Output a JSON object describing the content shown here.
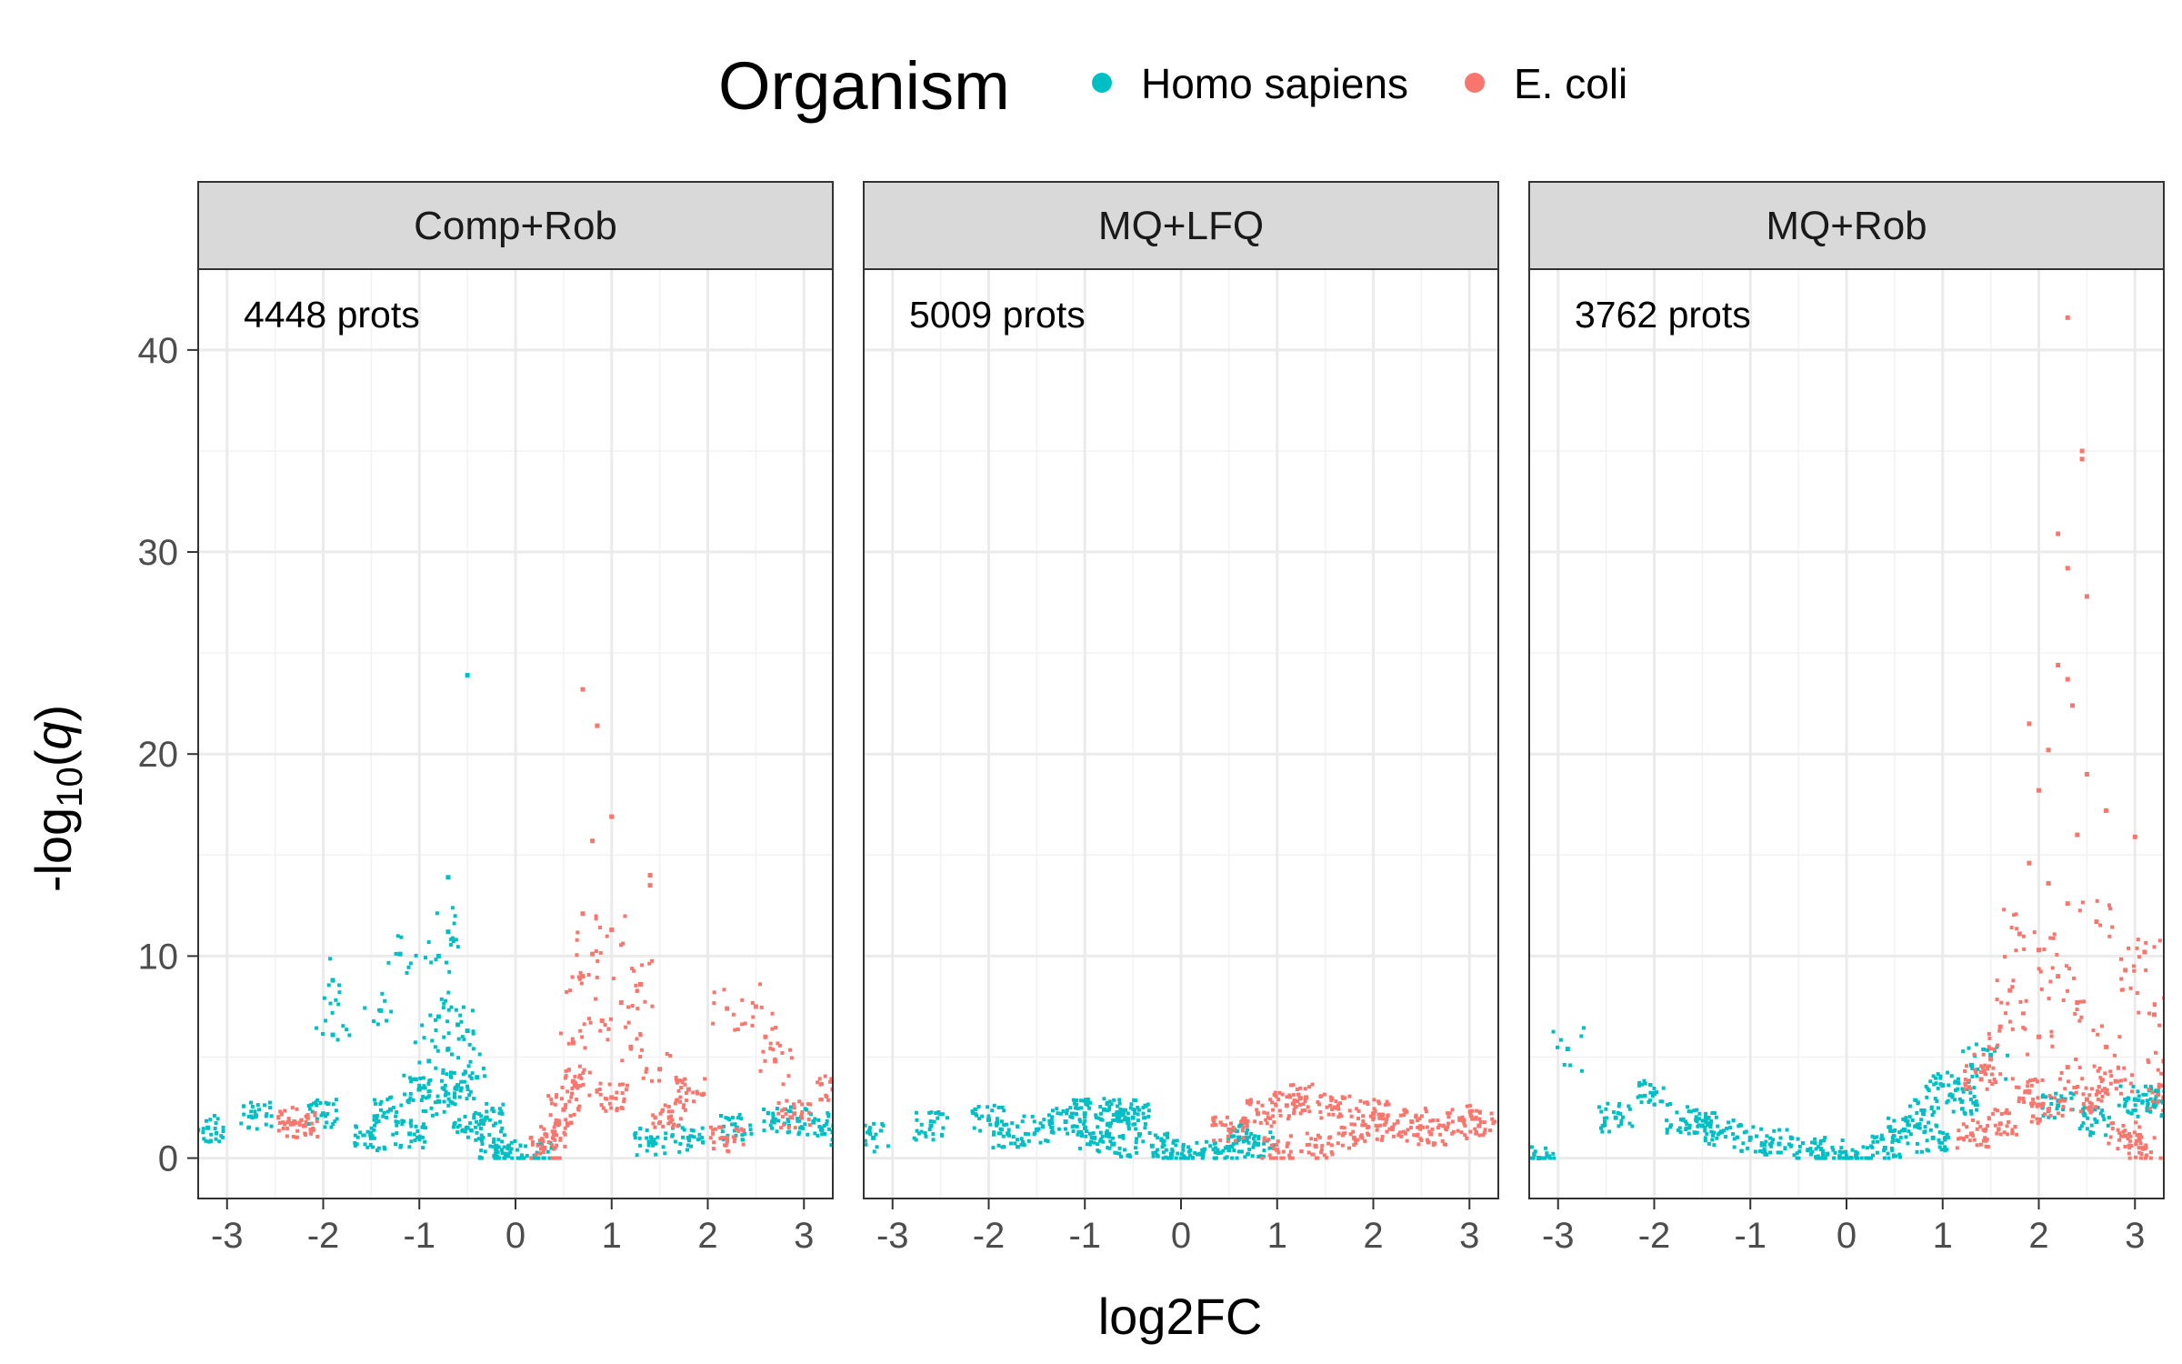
{
  "legend": {
    "title": "Organism",
    "items": [
      {
        "label": "Homo sapiens",
        "color": "#00BFC4"
      },
      {
        "label": "E. coli",
        "color": "#F8766D"
      }
    ]
  },
  "chart_data": {
    "type": "scatter",
    "xlabel": "log2FC",
    "ylabel": {
      "prefix": "-log",
      "sub": "10",
      "var": "q"
    },
    "xlim": [
      -3.3,
      3.3
    ],
    "ylim": [
      -2.0,
      44.0
    ],
    "x_ticks": [
      -3,
      -2,
      -1,
      0,
      1,
      2,
      3
    ],
    "x_tick_labels": [
      "-3",
      "-2",
      "-1",
      "0",
      "1",
      "2",
      "3"
    ],
    "y_ticks": [
      0,
      10,
      20,
      30,
      40
    ],
    "y_tick_labels": [
      "0",
      "10",
      "20",
      "30",
      "40"
    ],
    "grid": true,
    "legend_position": "top",
    "panels": [
      {
        "strip": "Comp+Rob",
        "annotation": "4448 prots",
        "series": [
          {
            "name": "Homo sapiens",
            "color": "#00BFC4",
            "values": [
              [
                -0.5,
                23.9
              ],
              [
                -0.7,
                13.9
              ],
              [
                -0.7,
                11.2
              ],
              [
                -0.8,
                10.0
              ],
              [
                -1.2,
                10.1
              ],
              [
                -1.9,
                8.8
              ],
              [
                -1.4,
                7.3
              ],
              [
                -1.9,
                6.1
              ],
              [
                -0.6,
                6.6
              ],
              [
                -0.8,
                7.0
              ],
              [
                -0.5,
                6.3
              ],
              [
                -0.7,
                5.4
              ],
              [
                -0.9,
                4.8
              ],
              [
                -0.4,
                4.0
              ],
              [
                -0.6,
                3.6
              ],
              [
                -1.0,
                3.4
              ],
              [
                -0.8,
                2.8
              ],
              [
                -1.3,
                2.4
              ],
              [
                -2.7,
                2.1
              ],
              [
                -3.2,
                1.5
              ],
              [
                -2.0,
                2.2
              ],
              [
                -0.3,
                2.0
              ],
              [
                -0.5,
                1.5
              ],
              [
                -1.1,
                1.2
              ],
              [
                -1.5,
                1.0
              ],
              [
                -0.2,
                0.6
              ],
              [
                -0.1,
                0.2
              ],
              [
                0.2,
                0.1
              ],
              [
                1.4,
                0.8
              ],
              [
                1.8,
                1.0
              ],
              [
                2.3,
                1.5
              ],
              [
                2.7,
                1.9
              ],
              [
                3.1,
                1.8
              ],
              [
                3.3,
                1.3
              ]
            ]
          },
          {
            "name": "E. coli",
            "color": "#F8766D",
            "values": [
              [
                0.7,
                23.2
              ],
              [
                0.85,
                21.4
              ],
              [
                1.0,
                16.9
              ],
              [
                0.8,
                15.7
              ],
              [
                1.4,
                14.0
              ],
              [
                1.4,
                13.5
              ],
              [
                0.7,
                12.1
              ],
              [
                1.0,
                11.3
              ],
              [
                0.8,
                10.1
              ],
              [
                0.7,
                9.0
              ],
              [
                1.3,
                8.6
              ],
              [
                1.1,
                7.7
              ],
              [
                0.9,
                6.8
              ],
              [
                2.5,
                7.5
              ],
              [
                2.2,
                7.4
              ],
              [
                2.6,
                6.0
              ],
              [
                0.6,
                5.7
              ],
              [
                1.2,
                5.5
              ],
              [
                2.7,
                4.8
              ],
              [
                1.5,
                4.4
              ],
              [
                0.6,
                3.8
              ],
              [
                1.8,
                3.4
              ],
              [
                3.3,
                3.4
              ],
              [
                1.0,
                3.0
              ],
              [
                2.9,
                2.2
              ],
              [
                0.5,
                2.4
              ],
              [
                1.6,
                2.0
              ],
              [
                0.4,
                1.2
              ],
              [
                2.2,
                1.0
              ],
              [
                -2.3,
                1.8
              ],
              [
                -2.2,
                1.6
              ],
              [
                0.3,
                0.5
              ]
            ]
          }
        ]
      },
      {
        "strip": "MQ+LFQ",
        "annotation": "5009 prots",
        "series": [
          {
            "name": "Homo sapiens",
            "color": "#00BFC4",
            "values": [
              [
                -3.2,
                1.0
              ],
              [
                -2.6,
                1.6
              ],
              [
                -2.0,
                1.9
              ],
              [
                -1.8,
                1.2
              ],
              [
                -1.5,
                1.4
              ],
              [
                -1.2,
                1.8
              ],
              [
                -1.0,
                2.2
              ],
              [
                -0.8,
                2.4
              ],
              [
                -0.6,
                2.3
              ],
              [
                -0.5,
                2.0
              ],
              [
                -0.9,
                1.0
              ],
              [
                -0.7,
                0.7
              ],
              [
                -0.3,
                0.6
              ],
              [
                -0.1,
                0.2
              ],
              [
                0.2,
                0.2
              ],
              [
                0.5,
                0.4
              ],
              [
                0.8,
                0.7
              ],
              [
                0.6,
                1.0
              ]
            ]
          },
          {
            "name": "E. coli",
            "color": "#F8766D",
            "values": [
              [
                0.5,
                1.4
              ],
              [
                0.8,
                2.2
              ],
              [
                1.1,
                2.6
              ],
              [
                1.3,
                3.0
              ],
              [
                1.6,
                2.5
              ],
              [
                2.0,
                2.2
              ],
              [
                2.4,
                1.8
              ],
              [
                2.6,
                1.2
              ],
              [
                2.9,
                1.9
              ],
              [
                3.1,
                1.6
              ],
              [
                1.0,
                0.4
              ],
              [
                1.4,
                0.6
              ],
              [
                1.8,
                1.0
              ],
              [
                2.2,
                1.5
              ]
            ]
          }
        ]
      },
      {
        "strip": "MQ+Rob",
        "annotation": "3762 prots",
        "series": [
          {
            "name": "Homo sapiens",
            "color": "#00BFC4",
            "values": [
              [
                -2.9,
                5.4
              ],
              [
                -3.2,
                0.0
              ],
              [
                -2.0,
                3.2
              ],
              [
                -2.4,
                2.0
              ],
              [
                -1.7,
                1.9
              ],
              [
                -1.5,
                1.6
              ],
              [
                -1.3,
                1.3
              ],
              [
                -1.0,
                1.0
              ],
              [
                -0.7,
                0.7
              ],
              [
                -0.4,
                0.4
              ],
              [
                -0.2,
                0.2
              ],
              [
                0.1,
                0.1
              ],
              [
                0.4,
                0.5
              ],
              [
                0.6,
                1.4
              ],
              [
                0.8,
                2.2
              ],
              [
                1.0,
                3.6
              ],
              [
                1.3,
                4.6
              ],
              [
                1.5,
                5.1
              ],
              [
                1.2,
                2.8
              ],
              [
                0.9,
                1.0
              ],
              [
                2.2,
                2.6
              ],
              [
                2.6,
                1.8
              ],
              [
                3.0,
                2.9
              ],
              [
                3.2,
                2.7
              ]
            ]
          },
          {
            "name": "E. coli",
            "color": "#F8766D",
            "values": [
              [
                2.3,
                41.6
              ],
              [
                2.45,
                35.0
              ],
              [
                2.45,
                34.6
              ],
              [
                2.2,
                30.9
              ],
              [
                2.3,
                29.2
              ],
              [
                2.5,
                27.8
              ],
              [
                2.2,
                24.4
              ],
              [
                2.3,
                23.7
              ],
              [
                2.35,
                22.4
              ],
              [
                1.9,
                21.5
              ],
              [
                2.1,
                20.2
              ],
              [
                2.5,
                19.0
              ],
              [
                2.0,
                18.2
              ],
              [
                2.7,
                17.2
              ],
              [
                2.4,
                16.0
              ],
              [
                3.0,
                15.9
              ],
              [
                1.9,
                14.6
              ],
              [
                2.1,
                13.6
              ],
              [
                2.3,
                12.6
              ],
              [
                2.6,
                11.7
              ],
              [
                1.8,
                11.1
              ],
              [
                2.0,
                10.3
              ],
              [
                3.1,
                10.2
              ],
              [
                2.9,
                9.3
              ],
              [
                2.2,
                9.0
              ],
              [
                1.7,
                8.3
              ],
              [
                2.4,
                7.7
              ],
              [
                3.2,
                7.1
              ],
              [
                1.6,
                6.5
              ],
              [
                2.0,
                6.0
              ],
              [
                2.7,
                5.5
              ],
              [
                1.5,
                4.9
              ],
              [
                2.3,
                4.5
              ],
              [
                3.3,
                4.8
              ],
              [
                1.4,
                3.9
              ],
              [
                1.9,
                3.3
              ],
              [
                2.5,
                2.9
              ],
              [
                2.1,
                2.4
              ],
              [
                1.6,
                1.7
              ],
              [
                1.3,
                1.2
              ],
              [
                2.9,
                1.1
              ],
              [
                3.1,
                0.5
              ],
              [
                2.8,
                3.8
              ],
              [
                3.3,
                3.0
              ]
            ]
          }
        ]
      }
    ]
  }
}
